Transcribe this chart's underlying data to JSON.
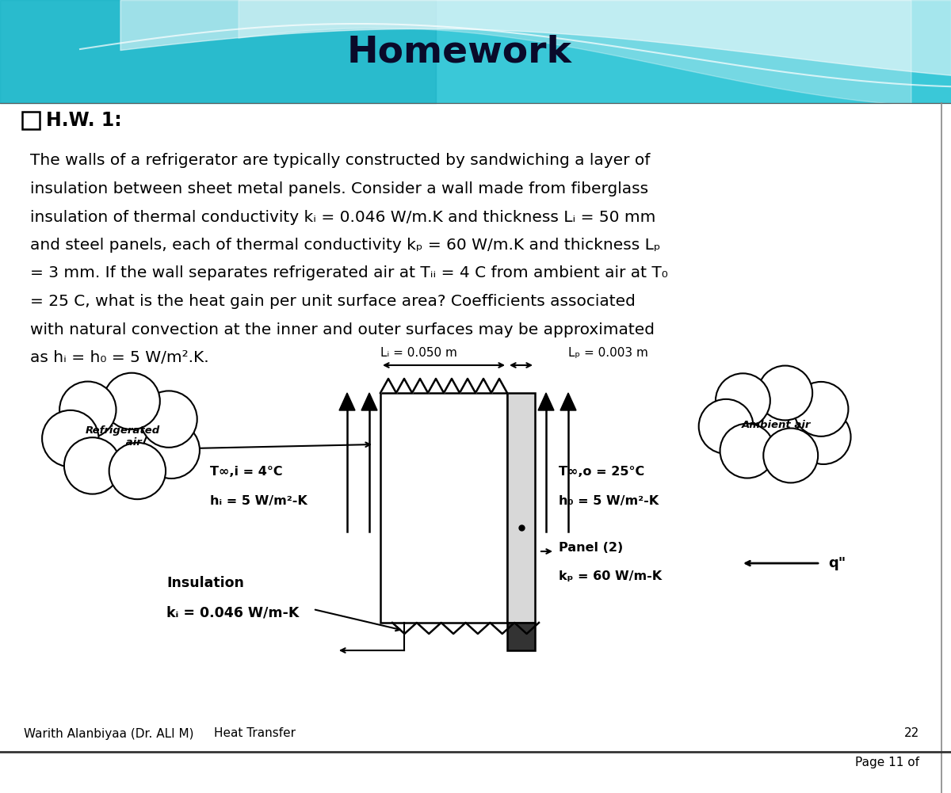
{
  "title": "Homework",
  "title_fontsize": 34,
  "title_color": "#0a0a2a",
  "title_fontweight": "bold",
  "body_bg_color": "#ffffff",
  "hw_label": "H.W. 1:",
  "hw_fontsize": 17,
  "para_fontsize": 14.5,
  "footer_author": "Warith Alanbiyaa (Dr. ALI M)",
  "footer_subject": "Heat Transfer",
  "footer_page": "Page 11 of",
  "footer_number": "22",
  "footer_fontsize": 11,
  "paragraph_lines": [
    "The walls of a refrigerator are typically constructed by sandwiching a layer of",
    "insulation between sheet metal panels. Consider a wall made from fiberglass",
    "insulation of thermal conductivity kᵢ = 0.046 W/m.K and thickness Lᵢ = 50 mm",
    "and steel panels, each of thermal conductivity kₚ = 60 W/m.K and thickness Lₚ",
    "= 3 mm. If the wall separates refrigerated air at Tᵢᵢ = 4 C from ambient air at T₀",
    "= 25 C, what is the heat gain per unit surface area? Coefficients associated",
    "with natural convection at the inner and outer surfaces may be approximated",
    "as hᵢ = h₀ = 5 W/m².K."
  ],
  "diagram_labels": {
    "Li_label": "Lᵢ = 0.050 m",
    "Lp_label": "Lₚ = 0.003 m",
    "refrig_air": "Refrigerated\nair",
    "ambient_air": "Ambient air",
    "T_inner": "T∞,i = 4°C",
    "h_inner": "hᵢ = 5 W/m²-K",
    "T_outer": "T∞,o = 25°C",
    "h_outer": "h₀ = 5 W/m²-K",
    "insulation": "Insulation",
    "ki_val": "kᵢ = 0.046 W/m-K",
    "panel2": "Panel (2)",
    "kp_val": "kₚ = 60 W/m-K",
    "q_label": "q\""
  }
}
